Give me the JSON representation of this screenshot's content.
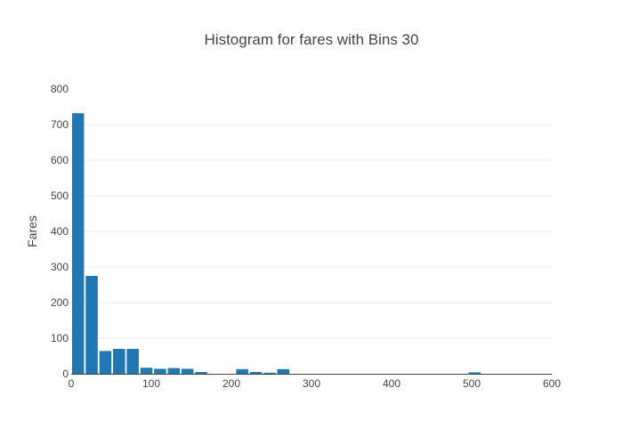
{
  "chart_data": {
    "type": "bar",
    "title": "Histogram for fares with Bins 30",
    "xlabel": "",
    "ylabel": "Fares",
    "xlim": [
      0,
      600
    ],
    "ylim": [
      0,
      800
    ],
    "x_ticks": [
      "0",
      "100",
      "200",
      "300",
      "400",
      "500",
      "600"
    ],
    "y_ticks": [
      "0",
      "100",
      "200",
      "300",
      "400",
      "500",
      "600",
      "700",
      "800"
    ],
    "bin_width": 17.08,
    "bins": [
      {
        "start": 0,
        "value": 732
      },
      {
        "start": 17.08,
        "value": 275
      },
      {
        "start": 34.16,
        "value": 64
      },
      {
        "start": 51.23,
        "value": 70
      },
      {
        "start": 68.31,
        "value": 70
      },
      {
        "start": 85.39,
        "value": 17
      },
      {
        "start": 102.47,
        "value": 14
      },
      {
        "start": 119.55,
        "value": 16
      },
      {
        "start": 136.62,
        "value": 14
      },
      {
        "start": 153.7,
        "value": 5
      },
      {
        "start": 170.78,
        "value": 0
      },
      {
        "start": 187.86,
        "value": 0
      },
      {
        "start": 204.94,
        "value": 13
      },
      {
        "start": 222.01,
        "value": 5
      },
      {
        "start": 239.09,
        "value": 3
      },
      {
        "start": 256.17,
        "value": 13
      },
      {
        "start": 273.25,
        "value": 0
      },
      {
        "start": 290.33,
        "value": 0
      },
      {
        "start": 307.4,
        "value": 0
      },
      {
        "start": 324.48,
        "value": 0
      },
      {
        "start": 341.56,
        "value": 0
      },
      {
        "start": 358.64,
        "value": 0
      },
      {
        "start": 375.72,
        "value": 0
      },
      {
        "start": 392.79,
        "value": 0
      },
      {
        "start": 409.87,
        "value": 0
      },
      {
        "start": 426.95,
        "value": 0
      },
      {
        "start": 444.03,
        "value": 0
      },
      {
        "start": 461.11,
        "value": 0
      },
      {
        "start": 478.18,
        "value": 0
      },
      {
        "start": 495.26,
        "value": 4
      }
    ],
    "grid": true,
    "legend": "none",
    "colors": {
      "bar": "#1f77b4",
      "grid": "#eeeeee",
      "text": "#444444"
    }
  }
}
